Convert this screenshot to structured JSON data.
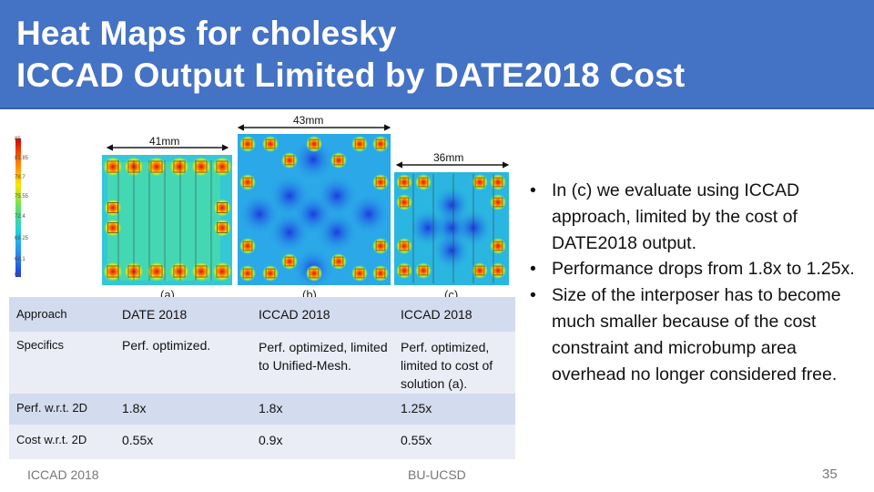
{
  "title": {
    "line1": "Heat Maps for cholesky",
    "line2": "ICCAD Output Limited by DATE2018 Cost"
  },
  "figure": {
    "scale_labels": [
      "85",
      "81.85",
      "78.7",
      "75.55",
      "72.4",
      "69.25",
      "66.1",
      "64"
    ],
    "dim_a": "41mm",
    "dim_b": "43mm",
    "dim_c": "36mm",
    "caption_a": "(a)",
    "caption_b": "(b)",
    "caption_c": "(c)"
  },
  "table": {
    "rows": [
      {
        "label": "Approach",
        "a": "DATE 2018",
        "b": "ICCAD 2018",
        "c": "ICCAD 2018"
      },
      {
        "label": "Specifics",
        "a": "Perf. optimized.",
        "b": "Perf. optimized, limited to Unified-Mesh.",
        "c": "Perf. optimized, limited to cost of solution (a)."
      },
      {
        "label": "Perf. w.r.t. 2D",
        "a": "1.8x",
        "b": "1.8x",
        "c": "1.25x"
      },
      {
        "label": "Cost w.r.t. 2D",
        "a": "0.55x",
        "b": "0.9x",
        "c": "0.55x"
      }
    ]
  },
  "bullets": [
    "In (c) we evaluate using ICCAD approach, limited by the cost of DATE2018 output.",
    "Performance drops from 1.8x to 1.25x.",
    "Size of the interposer has to become much smaller because of the cost constraint and microbump area overhead no longer considered free."
  ],
  "footer": {
    "left": "ICCAD 2018",
    "center": "BU-UCSD",
    "page": "35"
  },
  "colors": {
    "title_bg": "#4472c4",
    "table_band": "#d3dbee",
    "table_light": "#eaedf6"
  }
}
